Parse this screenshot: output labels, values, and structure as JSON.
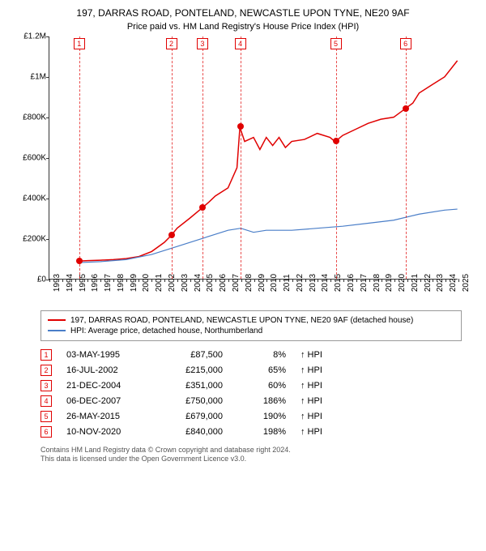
{
  "title": "197, DARRAS ROAD, PONTELAND, NEWCASTLE UPON TYNE, NE20 9AF",
  "subtitle": "Price paid vs. HM Land Registry's House Price Index (HPI)",
  "chart": {
    "type": "line",
    "background_color": "#ffffff",
    "axis_color": "#333333",
    "label_fontsize": 10,
    "x": {
      "min": 1993,
      "max": 2025,
      "step": 1
    },
    "y": {
      "min": 0,
      "max": 1200000,
      "step": 200000,
      "tick_labels": [
        "£0",
        "£200K",
        "£400K",
        "£600K",
        "£800K",
        "£1M",
        "£1.2M"
      ]
    },
    "series": [
      {
        "name": "property",
        "color": "#e00000",
        "width": 1.5,
        "points": [
          [
            1995.33,
            87500
          ],
          [
            1996,
            90000
          ],
          [
            1997,
            92000
          ],
          [
            1998,
            95000
          ],
          [
            1999,
            100000
          ],
          [
            2000,
            110000
          ],
          [
            2001,
            135000
          ],
          [
            2002,
            180000
          ],
          [
            2002.54,
            215000
          ],
          [
            2003,
            250000
          ],
          [
            2004,
            300000
          ],
          [
            2004.97,
            351000
          ],
          [
            2005.5,
            380000
          ],
          [
            2006,
            410000
          ],
          [
            2007,
            450000
          ],
          [
            2007.7,
            550000
          ],
          [
            2007.93,
            750000
          ],
          [
            2008.3,
            680000
          ],
          [
            2009,
            700000
          ],
          [
            2009.5,
            640000
          ],
          [
            2010,
            700000
          ],
          [
            2010.5,
            660000
          ],
          [
            2011,
            700000
          ],
          [
            2011.5,
            650000
          ],
          [
            2012,
            680000
          ],
          [
            2013,
            690000
          ],
          [
            2014,
            720000
          ],
          [
            2015,
            700000
          ],
          [
            2015.4,
            679000
          ],
          [
            2016,
            710000
          ],
          [
            2017,
            740000
          ],
          [
            2018,
            770000
          ],
          [
            2019,
            790000
          ],
          [
            2020,
            800000
          ],
          [
            2020.86,
            840000
          ],
          [
            2021.5,
            870000
          ],
          [
            2022,
            920000
          ],
          [
            2023,
            960000
          ],
          [
            2024,
            1000000
          ],
          [
            2025,
            1080000
          ]
        ]
      },
      {
        "name": "hpi",
        "color": "#4a7ec8",
        "width": 1.2,
        "points": [
          [
            1995.33,
            80000
          ],
          [
            1997,
            85000
          ],
          [
            1999,
            95000
          ],
          [
            2001,
            120000
          ],
          [
            2003,
            160000
          ],
          [
            2005,
            200000
          ],
          [
            2007,
            240000
          ],
          [
            2008,
            250000
          ],
          [
            2009,
            230000
          ],
          [
            2010,
            240000
          ],
          [
            2012,
            240000
          ],
          [
            2014,
            250000
          ],
          [
            2016,
            260000
          ],
          [
            2018,
            275000
          ],
          [
            2020,
            290000
          ],
          [
            2022,
            320000
          ],
          [
            2024,
            340000
          ],
          [
            2025,
            345000
          ]
        ]
      }
    ],
    "sale_markers": [
      {
        "n": "1",
        "year": 1995.33,
        "price": 87500
      },
      {
        "n": "2",
        "year": 2002.54,
        "price": 215000
      },
      {
        "n": "3",
        "year": 2004.97,
        "price": 351000
      },
      {
        "n": "4",
        "year": 2007.93,
        "price": 750000
      },
      {
        "n": "5",
        "year": 2015.4,
        "price": 679000
      },
      {
        "n": "6",
        "year": 2020.86,
        "price": 840000
      }
    ],
    "guide_color": "#e00000"
  },
  "legend": {
    "items": [
      {
        "color": "#e00000",
        "label": "197, DARRAS ROAD, PONTELAND, NEWCASTLE UPON TYNE, NE20 9AF (detached house)"
      },
      {
        "color": "#4a7ec8",
        "label": "HPI: Average price, detached house, Northumberland"
      }
    ]
  },
  "sales": [
    {
      "n": "1",
      "date": "03-MAY-1995",
      "price": "£87,500",
      "pct": "8%",
      "suffix": "↑ HPI"
    },
    {
      "n": "2",
      "date": "16-JUL-2002",
      "price": "£215,000",
      "pct": "65%",
      "suffix": "↑ HPI"
    },
    {
      "n": "3",
      "date": "21-DEC-2004",
      "price": "£351,000",
      "pct": "60%",
      "suffix": "↑ HPI"
    },
    {
      "n": "4",
      "date": "06-DEC-2007",
      "price": "£750,000",
      "pct": "186%",
      "suffix": "↑ HPI"
    },
    {
      "n": "5",
      "date": "26-MAY-2015",
      "price": "£679,000",
      "pct": "190%",
      "suffix": "↑ HPI"
    },
    {
      "n": "6",
      "date": "10-NOV-2020",
      "price": "£840,000",
      "pct": "198%",
      "suffix": "↑ HPI"
    }
  ],
  "footer_line1": "Contains HM Land Registry data © Crown copyright and database right 2024.",
  "footer_line2": "This data is licensed under the Open Government Licence v3.0."
}
